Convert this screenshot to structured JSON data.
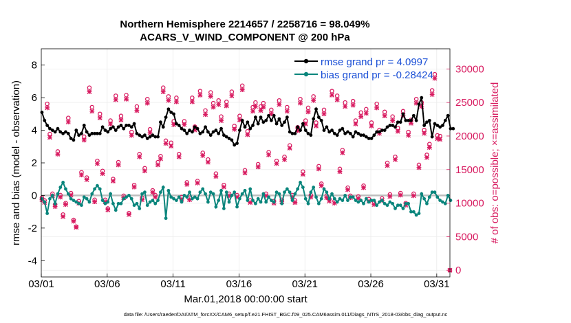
{
  "chart_data": {
    "type": "line",
    "title": "Northern Hemisphere 2214657 / 2258716 = 98.049%",
    "subtitle": "ACARS_V_WIND_COMPONENT @ 200 hPa",
    "xlabel": "Mar.01,2018 00:00:00 start",
    "ylabel_left": "rmse and bias (model - observation)",
    "ylabel_right": "# of obs: o=possible; ×=assimilated",
    "footnote": "data file: /Users/raeder/DAI/ATM_forcXX/CAM6_setup/f.e21.FHIST_BGC.f09_025.CAM6assim.011/Diags_NTrS_2018-03/obs_diag_output.nc",
    "x_ticks": [
      {
        "day": 1,
        "label": "03/01"
      },
      {
        "day": 6,
        "label": "03/06"
      },
      {
        "day": 11,
        "label": "03/11"
      },
      {
        "day": 16,
        "label": "03/16"
      },
      {
        "day": 21,
        "label": "03/21"
      },
      {
        "day": 26,
        "label": "03/26"
      },
      {
        "day": 31,
        "label": "03/31"
      }
    ],
    "xlim": [
      1,
      32
    ],
    "ylim_left": [
      -5,
      9
    ],
    "yticks_left": [
      "-4",
      "-2",
      "0",
      "2",
      "4",
      "6",
      "8"
    ],
    "ylim_right": [
      -1000,
      33000
    ],
    "yticks_right": [
      "0",
      "5000",
      "10000",
      "15000",
      "20000",
      "25000",
      "30000"
    ],
    "legend": [
      {
        "name": "rmse grand pr = 4.0997",
        "color": "#000000"
      },
      {
        "name": "bias grand pr = -0.28424",
        "color": "#0a857c"
      }
    ],
    "series": [
      {
        "name": "rmse",
        "color": "#000000",
        "values": [
          5.1,
          4.6,
          4.3,
          4.1,
          4,
          3.9,
          4.1,
          3.9,
          3.8,
          3.9,
          3.8,
          3.5,
          3.4,
          4,
          3.7,
          3.8,
          4.3,
          3.9,
          3.7,
          3.8,
          3.8,
          3.8,
          3.8,
          4.2,
          4,
          3.9,
          4.1,
          4.2,
          4,
          4.2,
          4.3,
          4.1,
          4.3,
          4.3,
          4.2,
          4.4,
          3.8,
          3.7,
          3.6,
          3.7,
          3.5,
          3.6,
          3.7,
          3.6,
          3.6,
          4.5,
          4.2,
          4.8,
          5.3,
          5.1,
          5,
          4.4,
          4.3,
          4.1,
          4,
          3.8,
          4,
          3.9,
          4.2,
          4.1,
          3.8,
          3.9,
          4.2,
          3.9,
          3.7,
          3.9,
          4,
          3.8,
          4.1,
          3.7,
          3.6,
          3.5,
          3.4,
          3.1,
          3.2,
          4,
          4.6,
          4.2,
          4.5,
          4.1,
          4.3,
          4.8,
          4.4,
          4.8,
          4.5,
          4.6,
          4.9,
          4.6,
          4.9,
          4.4,
          4.7,
          4.3,
          4.5,
          4.8,
          3.9,
          3.8,
          3.8,
          4.2,
          4,
          4.4,
          4,
          3.8,
          3.7,
          4.7,
          5.3,
          4.8,
          4.6,
          4,
          4.2,
          3.9,
          4,
          3.8,
          3.7,
          4,
          4.1,
          3.8,
          3.9,
          3.8,
          3.6,
          3.9,
          3.8,
          3.7,
          3.7,
          3.6,
          3.5,
          3.5,
          3.7,
          3.9,
          3.9,
          4,
          4,
          4.2,
          4.3,
          4.3,
          4.2,
          4.5,
          4.5,
          5,
          4.6,
          4.6,
          4.6,
          4.9,
          4.6,
          5.6,
          6,
          4.3,
          4.5,
          4.6,
          3.6,
          4.4,
          4.3,
          4.2,
          4.3,
          4.6,
          4.9,
          4.1,
          4.1
        ],
        "ylim": [
          -5,
          9
        ]
      },
      {
        "name": "bias",
        "color": "#0a857c",
        "values": [
          -0.2,
          -0.4,
          -1.1,
          -0.2,
          0,
          -0.5,
          0.1,
          0.5,
          0.8,
          0.4,
          0.1,
          -0.2,
          -0.3,
          -0.4,
          -0.5,
          -0.6,
          -0.1,
          -0.2,
          -0.4,
          0.1,
          0.4,
          0.6,
          0.4,
          -0.3,
          -0.5,
          -0.4,
          0.1,
          -0.5,
          -0.9,
          -0.5,
          -0.5,
          -0.2,
          -0.1,
          0,
          -0.2,
          -0.6,
          -0.5,
          -0.8,
          0.1,
          0.2,
          -0.6,
          -0.4,
          -0.3,
          -0.5,
          -0.3,
          0.2,
          0.5,
          -1.4,
          0.3,
          -0.1,
          -0.2,
          -0.3,
          -0.1,
          -0.4,
          0,
          -0.1,
          0.2,
          -0.2,
          -0.1,
          -0.2,
          0.2,
          0.4,
          0.1,
          -0.4,
          0.2,
          0.1,
          -0.7,
          -0.3,
          0.3,
          -0.8,
          0.2,
          -0.4,
          0,
          0.2,
          -0.7,
          -0.2,
          0.1,
          0.3,
          -0.3,
          0.4,
          -0.3,
          -0.5,
          -0.2,
          -0.4,
          0.1,
          -0.4,
          -0.1,
          -0.3,
          -0.4,
          0.2,
          0.1,
          -0.5,
          0.2,
          0.4,
          0.2,
          -0.3,
          0.1,
          0.4,
          0.8,
          0.5,
          -0.2,
          -0.5,
          0.2,
          0.5,
          -0.1,
          -0.5,
          -0.2,
          0.4,
          0.2,
          -0.2,
          0.1,
          -0.2,
          -0.4,
          -0.2,
          -0.3,
          0,
          -0.3,
          -0.1,
          -0.1,
          -0.3,
          -0.4,
          -0.3,
          -0.5,
          -0.2,
          -0.4,
          -0.3,
          -0.3,
          -0.6,
          -0.4,
          -0.3,
          -0.5,
          -0.6,
          -0.4,
          -0.5,
          -0.8,
          -0.6,
          -0.6,
          -0.8,
          -0.5,
          -0.5,
          -1,
          -1,
          -1.2,
          -1.1,
          0.1,
          -0.2,
          -0.5,
          -0.1,
          0.2,
          0.2,
          -0.1,
          -0.3,
          -0.4,
          -0.5,
          0,
          -0.3
        ],
        "ylim": [
          -5,
          9
        ]
      },
      {
        "name": "possible obs",
        "color": "#d81b60",
        "values": [
          10800,
          10400,
          24800,
          20300,
          11400,
          9800,
          17700,
          11200,
          8300,
          10000,
          22700,
          11500,
          7500,
          6500,
          10300,
          14600,
          19900,
          13800,
          27200,
          24300,
          10500,
          16300,
          23300,
          14800,
          10500,
          9200,
          22300,
          13600,
          26000,
          16100,
          23000,
          11100,
          26100,
          8500,
          20600,
          12700,
          24400,
          17300,
          10800,
          15200,
          25500,
          21000,
          11900,
          11200,
          16100,
          17000,
          27200,
          19300,
          25900,
          19000,
          22200,
          25700,
          17300,
          10900,
          22200,
          13100,
          10800,
          25700,
          21400,
          13300,
          26700,
          17500,
          23800,
          16500,
          26500,
          24900,
          14400,
          25300,
          22900,
          12700,
          25100,
          11400,
          26600,
          21500,
          11200,
          23000,
          27500,
          14900,
          20700,
          10400,
          24300,
          25000,
          15800,
          24400,
          24900,
          11400,
          17600,
          23900,
          10300,
          16300,
          25300,
          10500,
          16900,
          24300,
          18600,
          11200,
          10400,
          21300,
          25500,
          14700,
          22300,
          24200,
          11200,
          25900,
          22000,
          15500,
          12900,
          23900,
          11100,
          10600,
          26700,
          10300,
          26000,
          15100,
          17900,
          25000,
          12300,
          11100,
          25200,
          22300,
          11000,
          23500,
          12600,
          24000,
          10600,
          22000,
          10100,
          24800,
          20900,
          10700,
          23600,
          16000,
          11300,
          22900,
          16900,
          21200,
          11500,
          23700,
          10000,
          20600,
          22400,
          11400,
          25500,
          15700,
          25000,
          20900,
          17200,
          18800,
          26800,
          29200,
          20100,
          20000
        ],
        "ylim": [
          -1000,
          33000
        ]
      },
      {
        "name": "assimilated obs",
        "color": "#d81b60",
        "values": [
          10500,
          10100,
          24200,
          19800,
          11100,
          9500,
          17300,
          10900,
          8000,
          9800,
          22100,
          11200,
          7300,
          6400,
          10000,
          14200,
          19400,
          13500,
          26600,
          23700,
          10200,
          15900,
          22700,
          14400,
          10200,
          9000,
          21800,
          13300,
          25400,
          15700,
          22400,
          10800,
          25500,
          8300,
          20100,
          12400,
          23800,
          16900,
          10500,
          14800,
          24900,
          20500,
          11600,
          10900,
          15700,
          16600,
          26600,
          18900,
          25300,
          18500,
          21700,
          25100,
          16900,
          10600,
          21700,
          12800,
          10500,
          25100,
          20900,
          13000,
          26100,
          17100,
          23200,
          16100,
          25900,
          24300,
          14000,
          24700,
          22300,
          12400,
          24500,
          11100,
          26000,
          21000,
          10900,
          22400,
          26900,
          14500,
          20200,
          10100,
          23700,
          24400,
          15400,
          23800,
          24300,
          11100,
          17200,
          23300,
          10000,
          15900,
          24700,
          10200,
          16500,
          23700,
          18200,
          10900,
          10100,
          20800,
          24900,
          14300,
          21800,
          23600,
          10900,
          25300,
          21500,
          15100,
          12600,
          23300,
          10800,
          10300,
          26100,
          10000,
          25400,
          14700,
          17500,
          24400,
          12000,
          10800,
          24600,
          21800,
          10700,
          22900,
          12300,
          23400,
          10300,
          21500,
          9800,
          24200,
          20400,
          10400,
          23000,
          15600,
          11000,
          22300,
          16500,
          20700,
          11200,
          23100,
          9700,
          20100,
          21900,
          11100,
          24900,
          15300,
          24400,
          20400,
          16800,
          18300,
          26200,
          28600,
          19600,
          19500
        ],
        "ylim": [
          -1000,
          33000
        ]
      }
    ]
  }
}
